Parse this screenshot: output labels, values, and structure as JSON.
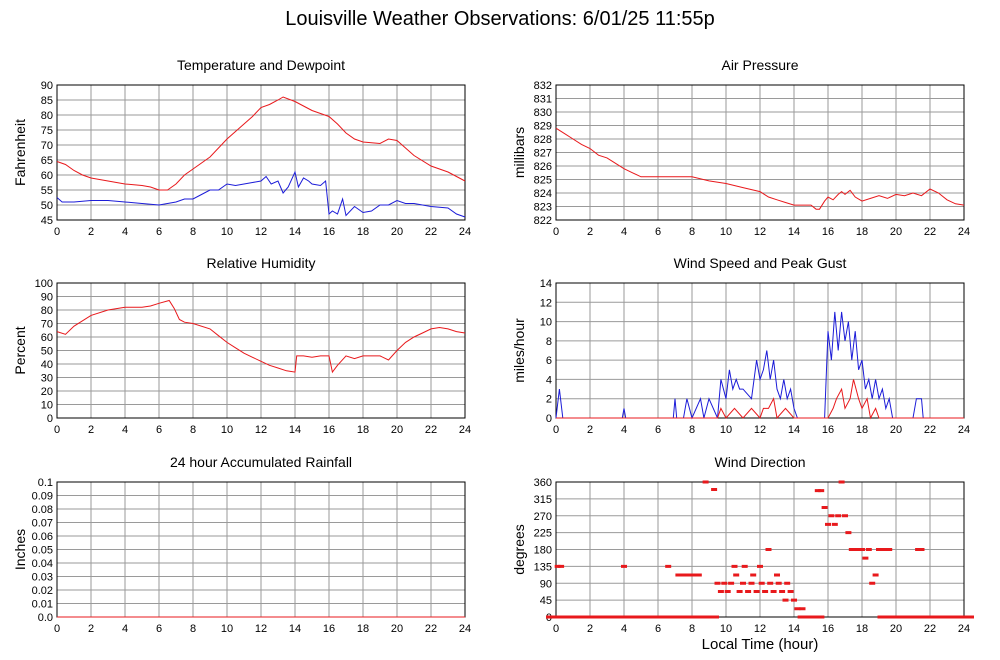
{
  "page": {
    "title": "Louisville Weather Observations: 6/01/25 11:55p"
  },
  "x_axis": {
    "label": "Local Time (hour)",
    "ticks": [
      "0",
      "2",
      "4",
      "6",
      "8",
      "10",
      "12",
      "14",
      "16",
      "18",
      "20",
      "22",
      "24"
    ],
    "range": [
      0,
      24
    ]
  },
  "colors": {
    "red": "#e8191c",
    "blue": "#1c1cd8",
    "grid": "#9a9a9a"
  },
  "chart_data": [
    {
      "id": "temp",
      "type": "line",
      "title": "Temperature and Dewpoint",
      "ylabel": "Fahrenheit",
      "ylim": [
        45,
        90
      ],
      "yticks": [
        "45",
        "50",
        "55",
        "60",
        "65",
        "70",
        "75",
        "80",
        "85",
        "90"
      ],
      "series": [
        {
          "color": "red",
          "x": [
            0,
            0.5,
            1,
            1.5,
            2,
            3,
            4,
            5,
            5.5,
            6,
            6.5,
            7,
            7.5,
            8,
            9,
            10,
            11,
            11.5,
            12,
            12.5,
            13,
            13.3,
            14,
            14.5,
            15,
            15.5,
            16,
            16.5,
            17,
            17.5,
            18,
            19,
            19.5,
            20,
            21,
            22,
            23,
            24
          ],
          "y": [
            64.5,
            63.5,
            61.5,
            60,
            59,
            58,
            57,
            56.5,
            56,
            55,
            55,
            57,
            60,
            62,
            66,
            72,
            77,
            79.5,
            82.5,
            83.5,
            85,
            86,
            84.5,
            83,
            81.5,
            80.5,
            79.5,
            77,
            74,
            72,
            71,
            70.5,
            72,
            71.5,
            66.5,
            63,
            61,
            58
          ]
        },
        {
          "color": "blue",
          "x": [
            0,
            0.3,
            0.6,
            1,
            2,
            3,
            4,
            5,
            6,
            6.5,
            7,
            7.5,
            8,
            8.5,
            9,
            9.5,
            10,
            10.5,
            11,
            11.5,
            12,
            12.3,
            12.6,
            13,
            13.3,
            13.6,
            14,
            14.2,
            14.5,
            14.8,
            15,
            15.5,
            15.8,
            16,
            16.2,
            16.5,
            16.8,
            17,
            17.5,
            18,
            18.5,
            19,
            19.5,
            20,
            20.5,
            21,
            22,
            23,
            23.5,
            24
          ],
          "y": [
            52.5,
            51,
            51,
            51,
            51.5,
            51.5,
            51,
            50.5,
            50,
            50.5,
            51,
            52,
            52,
            53.5,
            55,
            55,
            57,
            56.5,
            57,
            57.5,
            58,
            59.5,
            57,
            58,
            54,
            56,
            61,
            56,
            59,
            58,
            57,
            56.5,
            58,
            47,
            48,
            47,
            52,
            46.5,
            49.5,
            47.5,
            48,
            50,
            50,
            51.5,
            50.5,
            50.5,
            49.5,
            49,
            47,
            46
          ]
        }
      ]
    },
    {
      "id": "pressure",
      "type": "line",
      "title": "Air Pressure",
      "ylabel": "millibars",
      "ylim": [
        822,
        832
      ],
      "yticks": [
        "822",
        "823",
        "824",
        "825",
        "826",
        "827",
        "828",
        "829",
        "830",
        "831",
        "832"
      ],
      "series": [
        {
          "color": "red",
          "x": [
            0,
            0.5,
            1,
            1.5,
            2,
            2.5,
            3,
            3.5,
            4,
            4.5,
            5,
            6,
            7,
            8,
            9,
            10,
            11,
            12,
            12.5,
            13,
            13.5,
            14,
            14.5,
            15,
            15.3,
            15.5,
            15.8,
            16,
            16.3,
            16.6,
            16.8,
            17,
            17.3,
            17.6,
            18,
            18.5,
            19,
            19.5,
            20,
            20.5,
            21,
            21.5,
            22,
            22.5,
            23,
            23.5,
            24
          ],
          "y": [
            828.8,
            828.4,
            828,
            827.6,
            827.3,
            826.8,
            826.6,
            826.2,
            825.8,
            825.5,
            825.2,
            825.2,
            825.2,
            825.2,
            824.9,
            824.7,
            824.4,
            824.1,
            823.7,
            823.5,
            823.3,
            823.1,
            823.1,
            823.1,
            822.8,
            822.8,
            823.4,
            823.7,
            823.5,
            823.9,
            824.1,
            823.9,
            824.2,
            823.7,
            823.4,
            823.6,
            823.8,
            823.6,
            823.9,
            823.8,
            824,
            823.8,
            824.3,
            824,
            823.5,
            823.2,
            823.1
          ]
        }
      ]
    },
    {
      "id": "humidity",
      "type": "line",
      "title": "Relative Humidity",
      "ylabel": "Percent",
      "ylim": [
        0,
        100
      ],
      "yticks": [
        "0",
        "10",
        "20",
        "30",
        "40",
        "50",
        "60",
        "70",
        "80",
        "90",
        "100"
      ],
      "series": [
        {
          "color": "red",
          "x": [
            0,
            0.5,
            1,
            1.5,
            2,
            3,
            4,
            5,
            5.5,
            6,
            6.6,
            6.9,
            7.2,
            7.5,
            8,
            9,
            9.5,
            10,
            10.5,
            11,
            11.5,
            12,
            12.5,
            13,
            13.5,
            14,
            14.1,
            14.5,
            15,
            15.5,
            16,
            16.2,
            16.5,
            17,
            17.5,
            18,
            19,
            19.5,
            20,
            20.5,
            21,
            21.5,
            22,
            22.5,
            23,
            23.5,
            24
          ],
          "y": [
            64,
            62,
            68,
            72,
            76,
            80,
            82,
            82,
            83,
            85,
            87,
            81,
            73,
            71,
            70,
            66,
            61,
            56,
            52,
            48,
            45,
            42,
            39,
            37,
            35,
            34,
            46,
            46,
            45,
            46,
            46,
            34,
            39,
            46,
            44,
            46,
            46,
            43,
            50,
            56,
            60,
            63,
            66,
            67,
            66,
            64,
            63
          ]
        }
      ]
    },
    {
      "id": "wind",
      "type": "line",
      "title": "Wind Speed and Peak Gust",
      "ylabel": "miles/hour",
      "ylim": [
        0,
        14
      ],
      "yticks": [
        "0",
        "2",
        "4",
        "6",
        "8",
        "10",
        "12",
        "14"
      ],
      "series": [
        {
          "color": "blue",
          "x": [
            0,
            0.2,
            0.4,
            0.6,
            1,
            2,
            3,
            3.9,
            4,
            4.1,
            5,
            6,
            6.9,
            7,
            7.1,
            7.5,
            7.7,
            8,
            8.5,
            8.7,
            9,
            9.5,
            9.7,
            10,
            10.2,
            10.4,
            10.6,
            10.8,
            11,
            11.5,
            11.8,
            12,
            12.2,
            12.4,
            12.6,
            12.8,
            13,
            13.2,
            13.4,
            13.6,
            13.8,
            14,
            14.2,
            14.5,
            15,
            15.5,
            15.8,
            16,
            16.2,
            16.4,
            16.6,
            16.8,
            17,
            17.2,
            17.4,
            17.6,
            17.8,
            18,
            18.2,
            18.4,
            18.6,
            18.8,
            19,
            19.2,
            19.4,
            19.6,
            19.8,
            20,
            21,
            21.2,
            21.5,
            21.6,
            22,
            23,
            24
          ],
          "y": [
            0,
            3,
            0,
            0,
            0,
            0,
            0,
            0,
            1,
            0,
            0,
            0,
            0,
            2,
            0,
            0,
            2,
            0,
            2,
            0,
            2,
            0,
            4,
            2,
            5,
            3,
            4,
            3,
            3,
            2,
            6,
            4,
            5,
            7,
            4,
            6,
            3,
            2,
            4,
            2,
            3,
            1,
            0,
            0,
            0,
            0,
            0,
            9,
            6,
            11,
            7,
            11,
            8,
            10,
            6,
            9,
            5,
            6,
            3,
            4,
            2,
            4,
            2,
            3,
            1,
            2,
            0,
            0,
            0,
            2,
            2,
            0,
            0,
            0,
            0
          ]
        },
        {
          "color": "red",
          "x": [
            0,
            9,
            9.5,
            9.7,
            10,
            10.5,
            11,
            11.5,
            12,
            12.2,
            12.5,
            12.8,
            13,
            13.5,
            14,
            14.5,
            16,
            16.3,
            16.5,
            16.8,
            17,
            17.3,
            17.5,
            17.8,
            18,
            18.3,
            18.5,
            18.8,
            19,
            24
          ],
          "y": [
            0,
            0,
            0,
            1,
            0,
            1,
            0,
            1,
            0,
            1,
            1,
            2,
            0,
            1,
            0,
            0,
            0,
            1,
            2,
            3,
            1,
            2,
            4,
            2,
            1,
            2,
            0,
            1,
            0,
            0
          ]
        }
      ]
    },
    {
      "id": "rain",
      "type": "line",
      "title": "24 hour Accumulated Rainfall",
      "ylabel": "Inches",
      "ylim": [
        0,
        0.1
      ],
      "yticks": [
        "0.0",
        "0.01",
        "0.02",
        "0.03",
        "0.04",
        "0.05",
        "0.06",
        "0.07",
        "0.08",
        "0.09",
        "0.1"
      ],
      "series": [
        {
          "color": "red",
          "x": [
            0,
            24
          ],
          "y": [
            0,
            0
          ]
        }
      ]
    },
    {
      "id": "direction",
      "type": "scatter",
      "title": "Wind Direction",
      "ylabel": "degrees",
      "ylim": [
        0,
        360
      ],
      "yticks": [
        "0",
        "45",
        "90",
        "135",
        "180",
        "225",
        "270",
        "315",
        "360"
      ],
      "series": [
        {
          "color": "red",
          "x": [
            0.1,
            0.3,
            4,
            6.6,
            7.2,
            7.5,
            7.8,
            8.1,
            8.4,
            8.8,
            9.3,
            9.5,
            9.7,
            9.9,
            10.1,
            10.3,
            10.5,
            10.6,
            10.8,
            11,
            11.1,
            11.3,
            11.5,
            11.6,
            11.8,
            12,
            12.1,
            12.3,
            12.5,
            12.6,
            12.8,
            13,
            13.1,
            13.3,
            13.5,
            13.6,
            13.8,
            14,
            14.2,
            14.5,
            15.4,
            15.6,
            15.8,
            16,
            16.2,
            16.4,
            16.6,
            16.8,
            17,
            17.2,
            17.4,
            17.6,
            17.8,
            18,
            18.2,
            18.4,
            18.6,
            18.8,
            19,
            19.2,
            19.4,
            19.6,
            21.3,
            21.5
          ],
          "y": [
            135,
            135,
            135,
            135,
            112,
            112,
            112,
            112,
            112,
            360,
            340,
            90,
            68,
            90,
            68,
            90,
            135,
            112,
            68,
            90,
            135,
            68,
            90,
            112,
            68,
            135,
            90,
            68,
            180,
            90,
            68,
            112,
            90,
            68,
            45,
            90,
            68,
            45,
            22,
            22,
            337,
            337,
            292,
            247,
            270,
            247,
            270,
            360,
            270,
            225,
            180,
            180,
            180,
            180,
            157,
            180,
            90,
            112,
            180,
            180,
            180,
            180,
            180,
            180
          ]
        },
        {
          "color": "red",
          "x": [
            0,
            0.5,
            1,
            1.5,
            2,
            2.5,
            3,
            3.5,
            4,
            4.5,
            5,
            5.5,
            6,
            6.5,
            7,
            7.5,
            8,
            8.5,
            9,
            14.8,
            15,
            15.2,
            19.5,
            20,
            20.5,
            21,
            22,
            22.5,
            23,
            23.5,
            24
          ],
          "y": [
            0,
            0,
            0,
            0,
            0,
            0,
            0,
            0,
            0,
            0,
            0,
            0,
            0,
            0,
            0,
            0,
            0,
            0,
            0,
            0,
            0,
            0,
            0,
            0,
            0,
            0,
            0,
            0,
            0,
            0,
            0
          ]
        }
      ]
    }
  ]
}
